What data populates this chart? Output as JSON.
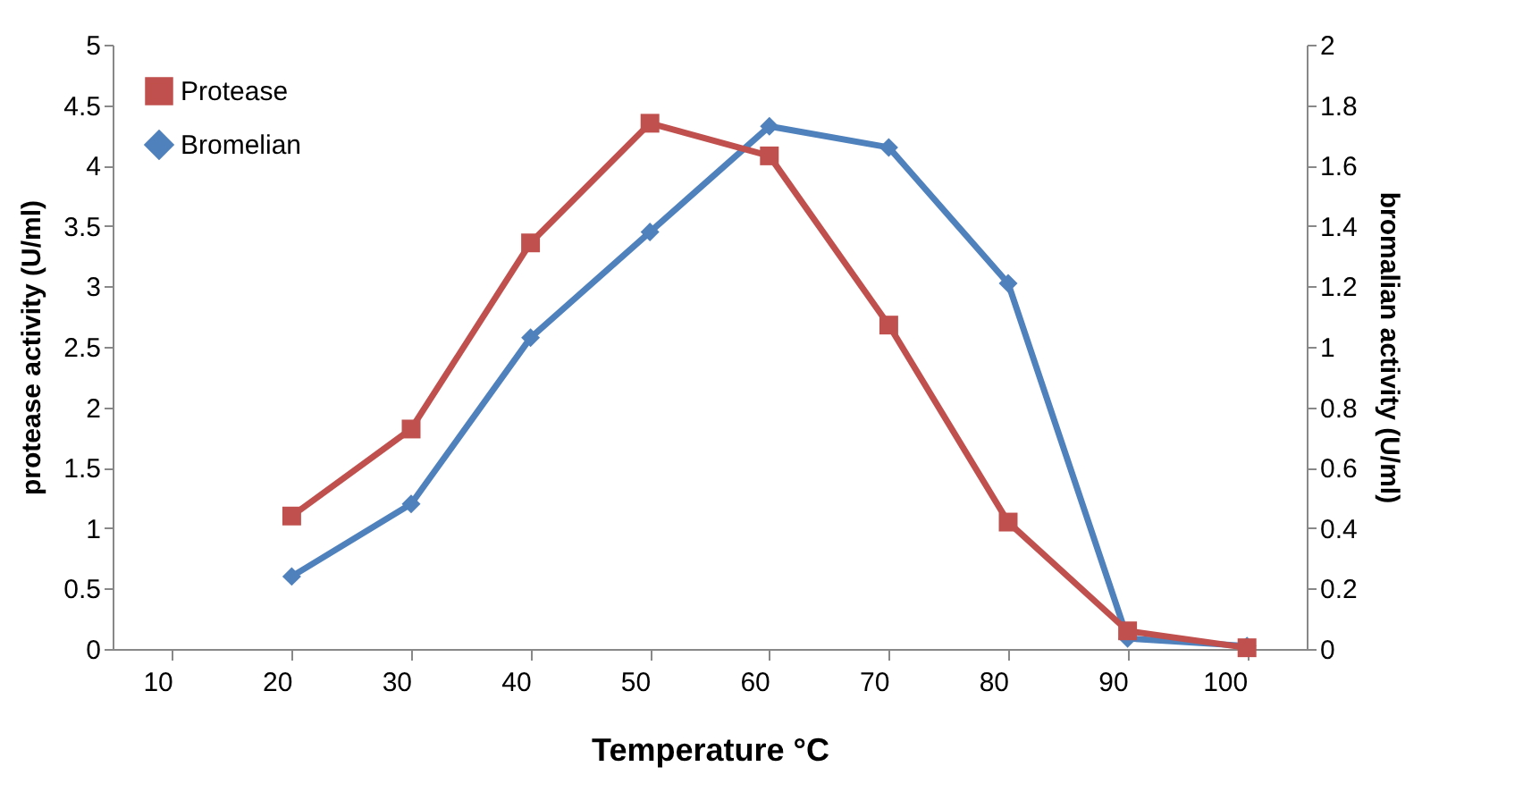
{
  "chart_data": {
    "type": "line",
    "xlabel": "Temperature °C",
    "ylabel": "protease activity (U/ml)",
    "y2label": "bromalian activity (U/ml)",
    "categories": [
      "10",
      "20",
      "30",
      "40",
      "50",
      "60",
      "70",
      "80",
      "90",
      "100"
    ],
    "series": [
      {
        "name": "Protease",
        "color": "#c0504d",
        "marker": "square",
        "values": [
          null,
          1.1,
          1.82,
          3.36,
          4.35,
          4.08,
          2.68,
          1.05,
          0.15,
          0.01
        ]
      },
      {
        "name": "Bromelian",
        "color": "#4f81bd",
        "marker": "diamond",
        "axis": "y2",
        "values": [
          null,
          0.24,
          0.48,
          1.03,
          1.38,
          1.73,
          1.66,
          1.21,
          0.035,
          0.01
        ]
      }
    ],
    "ylim": [
      0,
      5
    ],
    "yticks": [
      0,
      0.5,
      1,
      1.5,
      2,
      2.5,
      3,
      3.5,
      4,
      4.5,
      5
    ],
    "y2lim": [
      0,
      2
    ],
    "y2ticks": [
      0,
      0.2,
      0.4,
      0.6,
      0.8,
      1,
      1.2,
      1.4,
      1.6,
      1.8,
      2
    ],
    "legend": "top left",
    "grid": false,
    "line_style": "solid"
  }
}
